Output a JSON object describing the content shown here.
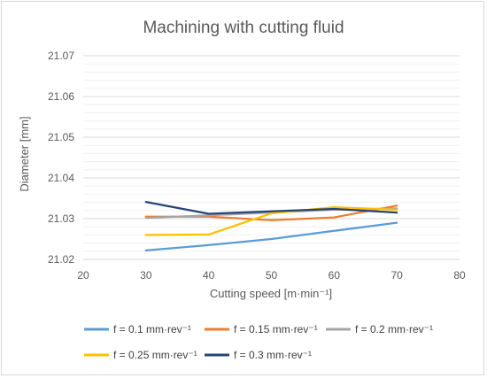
{
  "chart_data": {
    "type": "line",
    "title": "Machining with cutting fluid",
    "xlabel": "Cutting speed [m·min⁻¹]",
    "ylabel": "Diameter [mm]",
    "xlim": [
      20,
      80
    ],
    "ylim": [
      21.02,
      21.07
    ],
    "x_ticks": [
      "20",
      "30",
      "40",
      "50",
      "60",
      "70",
      "80"
    ],
    "y_ticks": [
      "21.02",
      "21.03",
      "21.04",
      "21.05",
      "21.06",
      "21.07"
    ],
    "grid": "horizontal",
    "legend_position": "bottom",
    "x": [
      30,
      40,
      50,
      60,
      70
    ],
    "series": [
      {
        "name": "f = 0.1 mm·rev⁻¹",
        "color": "#5b9bd5",
        "values": [
          21.0222,
          21.0235,
          21.025,
          21.027,
          21.029
        ]
      },
      {
        "name": "f = 0.15 mm·rev⁻¹",
        "color": "#ed7d31",
        "values": [
          21.0305,
          21.0305,
          21.0296,
          21.0303,
          21.0332
        ]
      },
      {
        "name": "f = 0.2 mm·rev⁻¹",
        "color": "#a5a5a5",
        "values": [
          21.0302,
          21.0308,
          21.0315,
          21.0322,
          21.0325
        ]
      },
      {
        "name": "f = 0.25 mm·rev⁻¹",
        "color": "#ffc000",
        "values": [
          21.026,
          21.0261,
          21.0313,
          21.0328,
          21.0322
        ]
      },
      {
        "name": "f = 0.3 mm·rev⁻¹",
        "color": "#264478",
        "values": [
          21.0341,
          21.0312,
          21.0318,
          21.0324,
          21.0315
        ]
      }
    ]
  }
}
